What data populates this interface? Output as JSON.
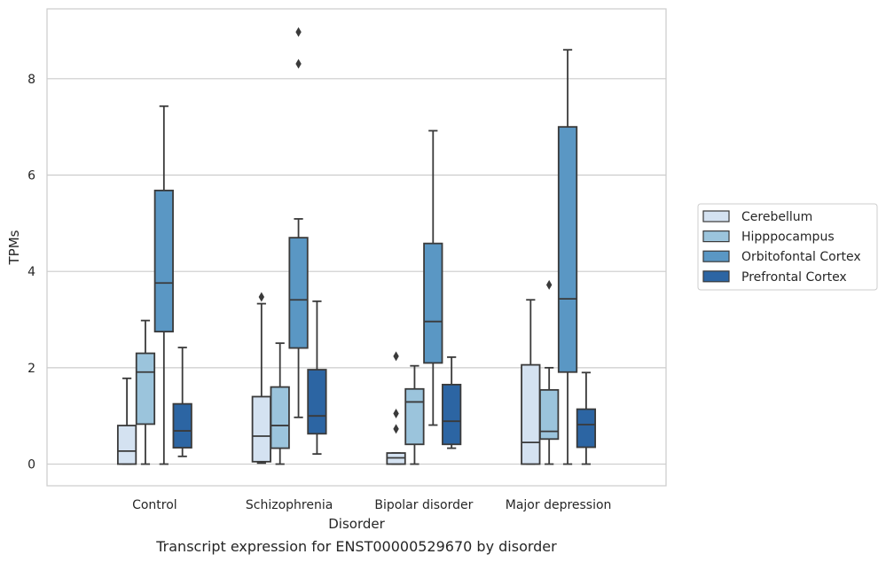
{
  "caption": "Transcript expression for ENST00000529670 by disorder",
  "chart_data": {
    "type": "box",
    "xlabel": "Disorder",
    "ylabel": "TPMs",
    "ylim": [
      -0.45,
      9.45
    ],
    "yticks": [
      0,
      2,
      4,
      6,
      8
    ],
    "grid": "horizontal",
    "legend_position": "right",
    "categories": [
      "Control",
      "Schizophrenia",
      "Bipolar disorder",
      "Major depression"
    ],
    "series": [
      {
        "name": "Cerebellum",
        "color": "#d4e2f1",
        "boxes": [
          {
            "whislo": 0,
            "q1": 0,
            "med": 0.27,
            "q3": 0.8,
            "whishi": 1.78,
            "fliers": []
          },
          {
            "whislo": 0.02,
            "q1": 0.05,
            "med": 0.58,
            "q3": 1.4,
            "whishi": 3.33,
            "fliers": [
              3.47
            ]
          },
          {
            "whislo": 0,
            "q1": 0,
            "med": 0.13,
            "q3": 0.23,
            "whishi": 0.23,
            "fliers": [
              0.73,
              1.05,
              2.24
            ]
          },
          {
            "whislo": 0,
            "q1": 0,
            "med": 0.45,
            "q3": 2.06,
            "whishi": 3.41,
            "fliers": []
          }
        ]
      },
      {
        "name": "Hipppocampus",
        "color": "#9bc4dc",
        "boxes": [
          {
            "whislo": 0,
            "q1": 0.83,
            "med": 1.91,
            "q3": 2.3,
            "whishi": 2.98,
            "fliers": []
          },
          {
            "whislo": 0,
            "q1": 0.33,
            "med": 0.8,
            "q3": 1.6,
            "whishi": 2.51,
            "fliers": []
          },
          {
            "whislo": 0,
            "q1": 0.41,
            "med": 1.29,
            "q3": 1.56,
            "whishi": 2.04,
            "fliers": []
          },
          {
            "whislo": 0,
            "q1": 0.52,
            "med": 0.68,
            "q3": 1.54,
            "whishi": 2.0,
            "fliers": [
              3.72
            ]
          }
        ]
      },
      {
        "name": "Orbitofontal Cortex",
        "color": "#5a97c4",
        "boxes": [
          {
            "whislo": 0,
            "q1": 2.75,
            "med": 3.76,
            "q3": 5.68,
            "whishi": 7.43,
            "fliers": []
          },
          {
            "whislo": 0.97,
            "q1": 2.41,
            "med": 3.41,
            "q3": 4.7,
            "whishi": 5.09,
            "fliers": [
              8.31,
              8.97
            ]
          },
          {
            "whislo": 0.81,
            "q1": 2.1,
            "med": 2.96,
            "q3": 4.58,
            "whishi": 6.92,
            "fliers": []
          },
          {
            "whislo": 0,
            "q1": 1.91,
            "med": 3.43,
            "q3": 7.0,
            "whishi": 8.6,
            "fliers": []
          }
        ]
      },
      {
        "name": "Prefrontal Cortex",
        "color": "#2c65a3",
        "boxes": [
          {
            "whislo": 0.16,
            "q1": 0.34,
            "med": 0.69,
            "q3": 1.25,
            "whishi": 2.42,
            "fliers": []
          },
          {
            "whislo": 0.21,
            "q1": 0.63,
            "med": 1.0,
            "q3": 1.96,
            "whishi": 3.38,
            "fliers": []
          },
          {
            "whislo": 0.33,
            "q1": 0.41,
            "med": 0.89,
            "q3": 1.65,
            "whishi": 2.22,
            "fliers": []
          },
          {
            "whislo": 0,
            "q1": 0.35,
            "med": 0.82,
            "q3": 1.14,
            "whishi": 1.9,
            "fliers": []
          }
        ]
      }
    ]
  }
}
